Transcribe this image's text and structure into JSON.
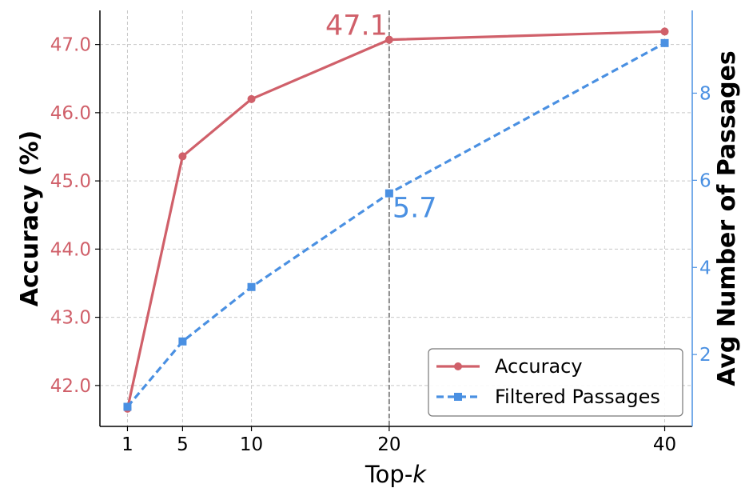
{
  "chart_data": {
    "type": "line",
    "x": [
      1,
      5,
      10,
      20,
      40
    ],
    "x_tick_labels": [
      "1",
      "5",
      "10",
      "20",
      "40"
    ],
    "xlabel_prefix": "Top-",
    "xlabel_var": "k",
    "xlim": [
      -1,
      42
    ],
    "grid": true,
    "legend_placement": "lower-right",
    "vline_x": 20,
    "series": [
      {
        "name": "Accuracy",
        "axis": "left",
        "values": [
          41.66,
          45.36,
          46.2,
          47.07,
          47.19
        ],
        "color": "#d0606a",
        "marker": "circle",
        "line_style": "solid"
      },
      {
        "name": "Filtered Passages",
        "axis": "right",
        "values": [
          0.8,
          2.3,
          3.55,
          5.7,
          9.15
        ],
        "color": "#4a90e2",
        "marker": "square",
        "line_style": "dashed"
      }
    ],
    "y_left": {
      "label": "Accuracy (%)",
      "lim": [
        41.4,
        47.5
      ],
      "ticks": [
        42.0,
        43.0,
        44.0,
        45.0,
        46.0,
        47.0
      ],
      "tick_labels": [
        "42.0",
        "43.0",
        "44.0",
        "45.0",
        "46.0",
        "47.0"
      ],
      "color": "#d0606a"
    },
    "y_right": {
      "label": "Avg Number of Passages",
      "lim": [
        0.35,
        9.9
      ],
      "ticks": [
        2,
        4,
        6,
        8
      ],
      "tick_labels": [
        "2",
        "4",
        "6",
        "8"
      ],
      "color": "#4a90e2"
    },
    "annotations": [
      {
        "text": "47.1",
        "series": 0,
        "x": 20,
        "color": "#d0606a"
      },
      {
        "text": "5.7",
        "series": 1,
        "x": 20,
        "color": "#4a90e2"
      }
    ]
  }
}
